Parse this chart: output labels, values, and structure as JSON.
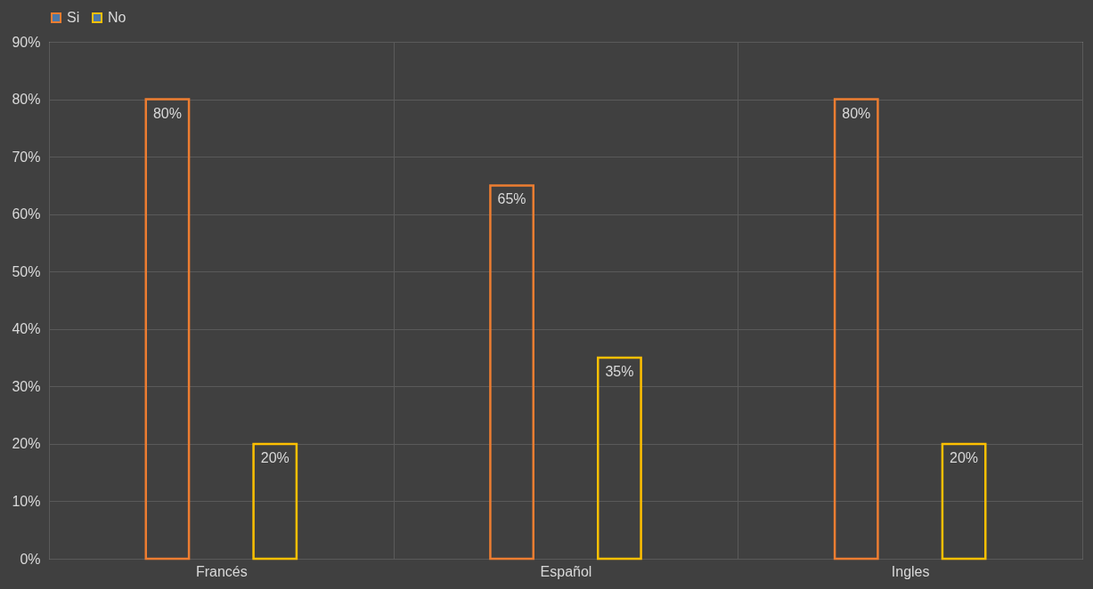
{
  "chart_data": {
    "type": "bar",
    "categories": [
      "Francés",
      "Español",
      "Ingles"
    ],
    "series": [
      {
        "name": "Si",
        "color": "#ed7d31",
        "values": [
          80,
          65,
          80
        ],
        "value_labels": [
          "80%",
          "65%",
          "80%"
        ]
      },
      {
        "name": "No",
        "color": "#ffc000",
        "values": [
          20,
          35,
          20
        ],
        "value_labels": [
          "20%",
          "35%",
          "20%"
        ]
      }
    ],
    "ylim": [
      0,
      90
    ],
    "yticks": [
      {
        "value": 0,
        "label": "0%"
      },
      {
        "value": 10,
        "label": "10%"
      },
      {
        "value": 20,
        "label": "20%"
      },
      {
        "value": 30,
        "label": "30%"
      },
      {
        "value": 40,
        "label": "40%"
      },
      {
        "value": 50,
        "label": "50%"
      },
      {
        "value": 60,
        "label": "60%"
      },
      {
        "value": 70,
        "label": "70%"
      },
      {
        "value": 80,
        "label": "80%"
      },
      {
        "value": 90,
        "label": "90%"
      }
    ],
    "grid": true,
    "legend": "top"
  }
}
